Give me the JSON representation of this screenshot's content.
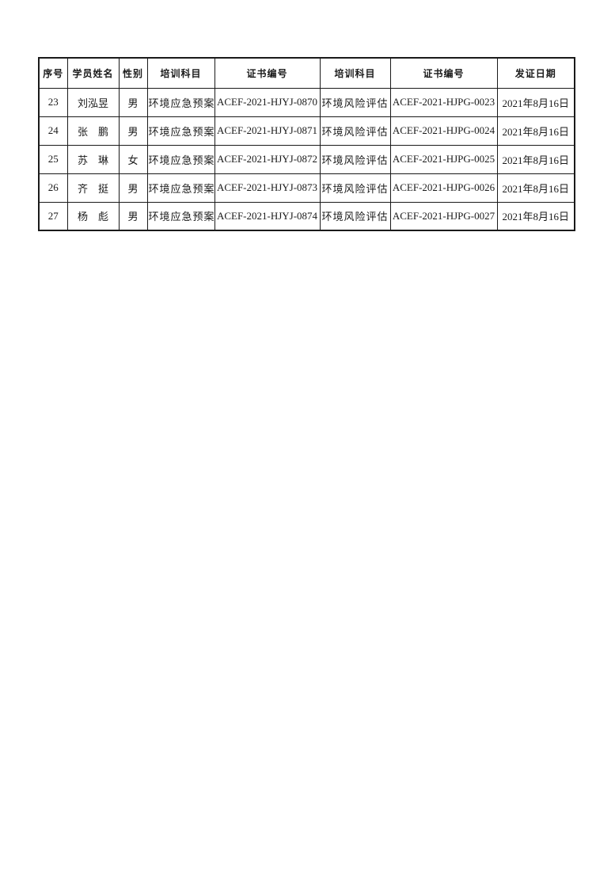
{
  "table": {
    "headers": [
      {
        "key": "seq",
        "label": "序号"
      },
      {
        "key": "name",
        "label": "学员姓名"
      },
      {
        "key": "gender",
        "label": "性别"
      },
      {
        "key": "subject1",
        "label": "培训科目"
      },
      {
        "key": "certno1",
        "label": "证书编号"
      },
      {
        "key": "subject2",
        "label": "培训科目"
      },
      {
        "key": "certno2",
        "label": "证书编号"
      },
      {
        "key": "date",
        "label": "发证日期"
      }
    ],
    "rows": [
      {
        "seq": "23",
        "name": "刘泓昱",
        "gender": "男",
        "subject1": "环境应急预案",
        "certno1": "ACEF-2021-HJYJ-0870",
        "subject2": "环境风险评估",
        "certno2": "ACEF-2021-HJPG-0023",
        "date": "2021年8月16日"
      },
      {
        "seq": "24",
        "name": "张　鹏",
        "gender": "男",
        "subject1": "环境应急预案",
        "certno1": "ACEF-2021-HJYJ-0871",
        "subject2": "环境风险评估",
        "certno2": "ACEF-2021-HJPG-0024",
        "date": "2021年8月16日"
      },
      {
        "seq": "25",
        "name": "苏　琳",
        "gender": "女",
        "subject1": "环境应急预案",
        "certno1": "ACEF-2021-HJYJ-0872",
        "subject2": "环境风险评估",
        "certno2": "ACEF-2021-HJPG-0025",
        "date": "2021年8月16日"
      },
      {
        "seq": "26",
        "name": "齐　挺",
        "gender": "男",
        "subject1": "环境应急预案",
        "certno1": "ACEF-2021-HJYJ-0873",
        "subject2": "环境风险评估",
        "certno2": "ACEF-2021-HJPG-0026",
        "date": "2021年8月16日"
      },
      {
        "seq": "27",
        "name": "杨　彪",
        "gender": "男",
        "subject1": "环境应急预案",
        "certno1": "ACEF-2021-HJYJ-0874",
        "subject2": "环境风险评估",
        "certno2": "ACEF-2021-HJPG-0027",
        "date": "2021年8月16日"
      }
    ]
  },
  "colors": {
    "page_background": "#ffffff",
    "border": "#1a1a1a",
    "text": "#1a1a1a"
  }
}
